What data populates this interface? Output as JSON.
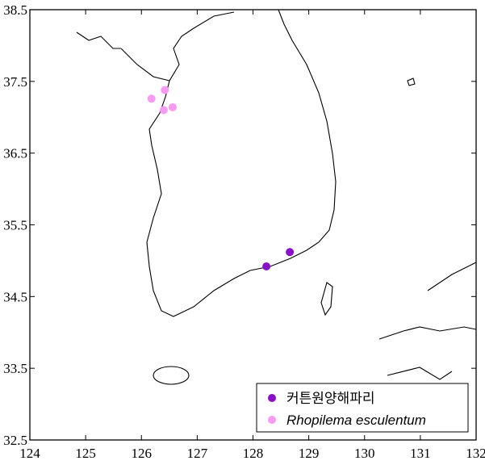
{
  "chart_data": {
    "type": "scatter",
    "xlim": [
      124,
      132
    ],
    "ylim": [
      32.5,
      38.5
    ],
    "xticks": [
      124,
      125,
      126,
      127,
      128,
      129,
      130,
      131,
      132
    ],
    "yticks": [
      32.5,
      33.5,
      34.5,
      35.5,
      36.5,
      37.5,
      38.5
    ],
    "legend": "lower right",
    "series": [
      {
        "name": "커튼원양해파리",
        "color": "#8a0fc9",
        "x": [
          128.24,
          128.66
        ],
        "y": [
          34.92,
          35.12
        ]
      },
      {
        "name": "Rhopilema esculentum",
        "color": "#f79af2",
        "x": [
          126.18,
          126.42,
          126.4,
          126.56
        ],
        "y": [
          37.26,
          37.38,
          37.1,
          37.14
        ]
      }
    ]
  }
}
